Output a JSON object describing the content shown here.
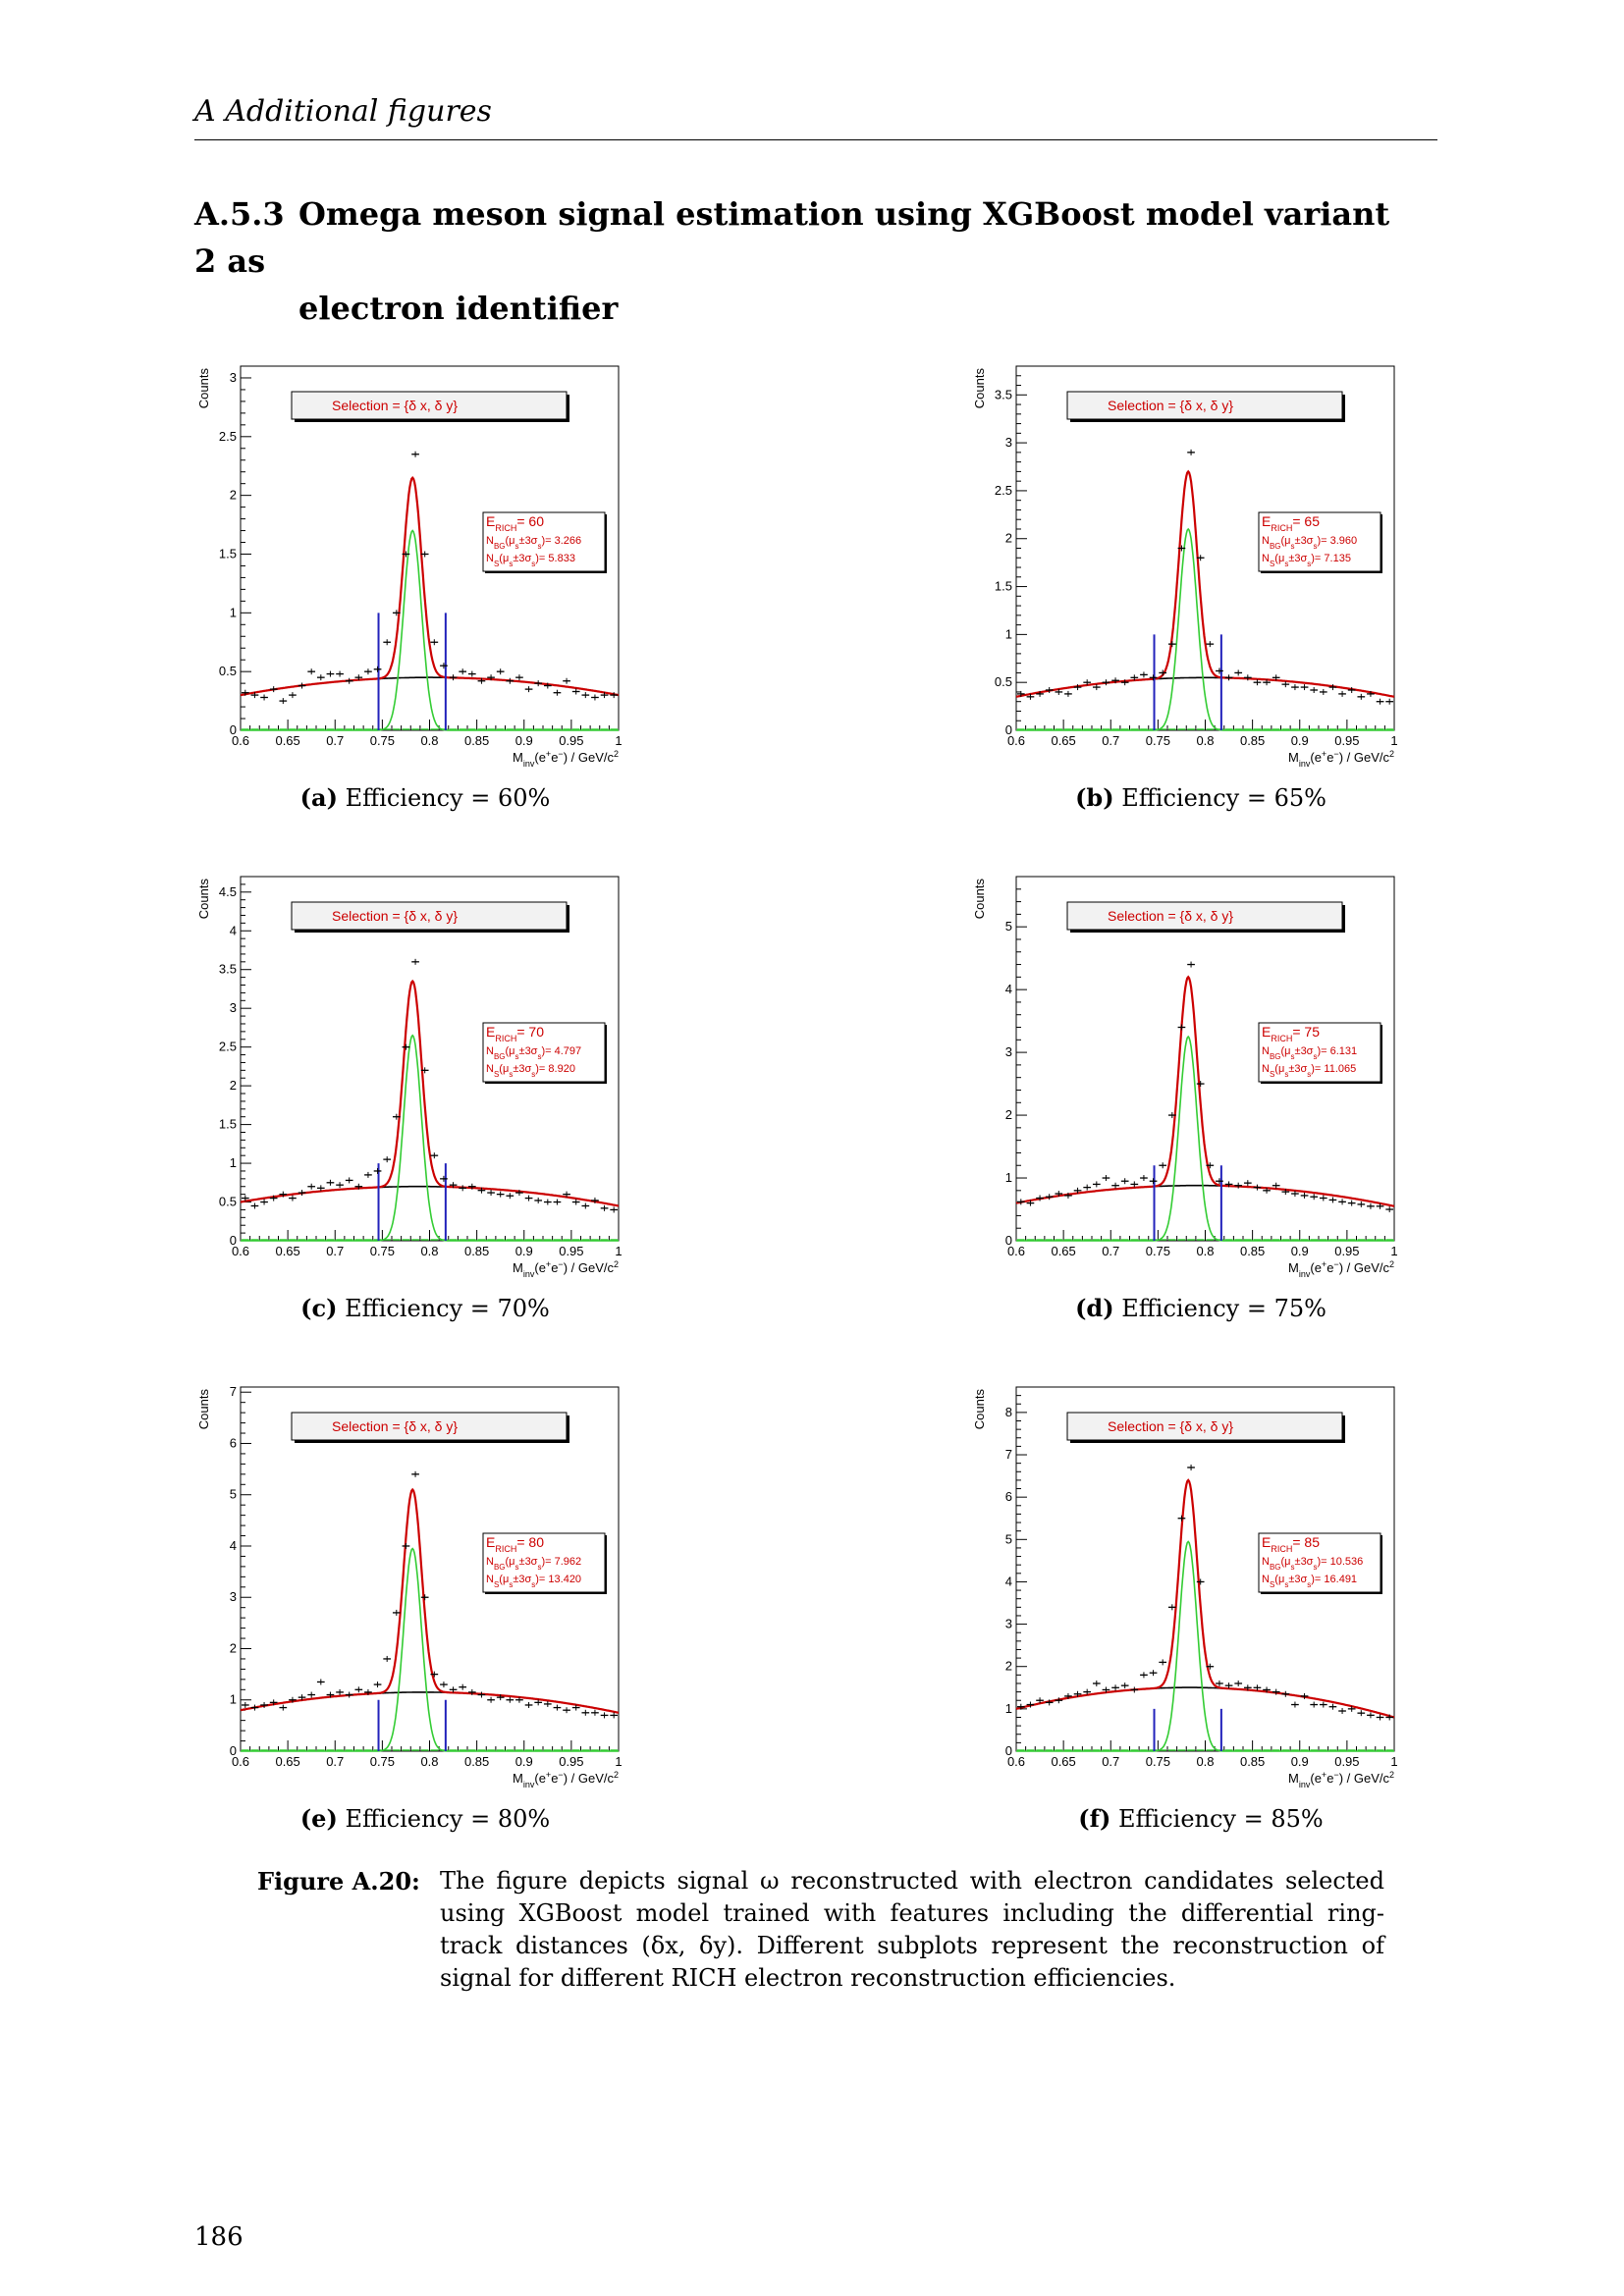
{
  "header": {
    "running_title": "A  Additional figures"
  },
  "section": {
    "number": "A.5.3",
    "title_line1": "Omega meson signal estimation using XGBoost model variant 2 as",
    "title_line2": "electron identifier"
  },
  "colors": {
    "signal_fit": "#cc0000",
    "gauss": "#33cc33",
    "background": "#000000",
    "window": "#2222bb",
    "legend_text": "#cc0000"
  },
  "chart_data": [
    {
      "type": "scatter",
      "panel": "a",
      "title": "",
      "xlabel": "M_inv(e+e-) / GeV/c^2",
      "ylabel": "Counts",
      "xlim": [
        0.6,
        1.0
      ],
      "ylim": [
        0,
        3.1
      ],
      "xticks": [
        "0.6",
        "0.65",
        "0.7",
        "0.75",
        "0.8",
        "0.85",
        "0.9",
        "0.95",
        "1"
      ],
      "yticks": [
        0,
        0.5,
        1,
        1.5,
        2,
        2.5,
        3
      ],
      "selection": "Selection = {δ x, δ y}",
      "efficiency_label": "E",
      "efficiency_sub": "RICH",
      "efficiency_value": "= 60",
      "stat_lines": [
        "N_BG(μ_s±3σ_s)= 3.266",
        "N_S(μ_s±3σ_s)= 5.833"
      ],
      "caption_label": "(a)",
      "caption_text": "Efficiency = 60%",
      "peak": 2.15,
      "gauss_amp": 1.7,
      "bkg": [
        0.3,
        0.45,
        0.3
      ],
      "window": [
        0.746,
        0.817
      ],
      "window_height": 1.0,
      "points": [
        [
          0.605,
          0.32
        ],
        [
          0.615,
          0.3
        ],
        [
          0.625,
          0.28
        ],
        [
          0.635,
          0.35
        ],
        [
          0.645,
          0.25
        ],
        [
          0.655,
          0.3
        ],
        [
          0.665,
          0.38
        ],
        [
          0.675,
          0.5
        ],
        [
          0.685,
          0.45
        ],
        [
          0.695,
          0.48
        ],
        [
          0.705,
          0.48
        ],
        [
          0.715,
          0.42
        ],
        [
          0.725,
          0.45
        ],
        [
          0.735,
          0.5
        ],
        [
          0.745,
          0.52
        ],
        [
          0.755,
          0.75
        ],
        [
          0.765,
          1.0
        ],
        [
          0.775,
          1.5
        ],
        [
          0.785,
          2.35
        ],
        [
          0.795,
          1.5
        ],
        [
          0.805,
          0.75
        ],
        [
          0.815,
          0.55
        ],
        [
          0.825,
          0.45
        ],
        [
          0.835,
          0.5
        ],
        [
          0.845,
          0.48
        ],
        [
          0.855,
          0.42
        ],
        [
          0.865,
          0.45
        ],
        [
          0.875,
          0.5
        ],
        [
          0.885,
          0.42
        ],
        [
          0.895,
          0.45
        ],
        [
          0.905,
          0.35
        ],
        [
          0.915,
          0.4
        ],
        [
          0.925,
          0.38
        ],
        [
          0.935,
          0.32
        ],
        [
          0.945,
          0.42
        ],
        [
          0.955,
          0.33
        ],
        [
          0.965,
          0.3
        ],
        [
          0.975,
          0.28
        ],
        [
          0.985,
          0.3
        ],
        [
          0.995,
          0.3
        ]
      ]
    },
    {
      "type": "scatter",
      "panel": "b",
      "title": "",
      "xlabel": "M_inv(e+e-) / GeV/c^2",
      "ylabel": "Counts",
      "xlim": [
        0.6,
        1.0
      ],
      "ylim": [
        0,
        3.8
      ],
      "xticks": [
        "0.6",
        "0.65",
        "0.7",
        "0.75",
        "0.8",
        "0.85",
        "0.9",
        "0.95",
        "1"
      ],
      "yticks": [
        0,
        0.5,
        1,
        1.5,
        2,
        2.5,
        3,
        3.5
      ],
      "selection": "Selection = {δ x, δ y}",
      "efficiency_label": "E",
      "efficiency_sub": "RICH",
      "efficiency_value": "= 65",
      "stat_lines": [
        "N_BG(μ_s±3σ_s)= 3.960",
        "N_S(μ_s±3σ_s)= 7.135"
      ],
      "caption_label": "(b)",
      "caption_text": "Efficiency = 65%",
      "peak": 2.7,
      "gauss_amp": 2.1,
      "bkg": [
        0.35,
        0.55,
        0.35
      ],
      "window": [
        0.746,
        0.817
      ],
      "window_height": 1.0,
      "points": [
        [
          0.605,
          0.38
        ],
        [
          0.615,
          0.35
        ],
        [
          0.625,
          0.38
        ],
        [
          0.635,
          0.42
        ],
        [
          0.645,
          0.4
        ],
        [
          0.655,
          0.38
        ],
        [
          0.665,
          0.45
        ],
        [
          0.675,
          0.5
        ],
        [
          0.685,
          0.45
        ],
        [
          0.695,
          0.5
        ],
        [
          0.705,
          0.52
        ],
        [
          0.715,
          0.5
        ],
        [
          0.725,
          0.55
        ],
        [
          0.735,
          0.58
        ],
        [
          0.745,
          0.55
        ],
        [
          0.755,
          0.6
        ],
        [
          0.765,
          0.9
        ],
        [
          0.775,
          1.9
        ],
        [
          0.785,
          2.9
        ],
        [
          0.795,
          1.8
        ],
        [
          0.805,
          0.9
        ],
        [
          0.815,
          0.62
        ],
        [
          0.825,
          0.55
        ],
        [
          0.835,
          0.6
        ],
        [
          0.845,
          0.55
        ],
        [
          0.855,
          0.5
        ],
        [
          0.865,
          0.5
        ],
        [
          0.875,
          0.55
        ],
        [
          0.885,
          0.48
        ],
        [
          0.895,
          0.45
        ],
        [
          0.905,
          0.45
        ],
        [
          0.915,
          0.42
        ],
        [
          0.925,
          0.4
        ],
        [
          0.935,
          0.45
        ],
        [
          0.945,
          0.38
        ],
        [
          0.955,
          0.42
        ],
        [
          0.965,
          0.35
        ],
        [
          0.975,
          0.38
        ],
        [
          0.985,
          0.3
        ],
        [
          0.995,
          0.3
        ]
      ]
    },
    {
      "type": "scatter",
      "panel": "c",
      "title": "",
      "xlabel": "M_inv(e+e-) / GeV/c^2",
      "ylabel": "Counts",
      "xlim": [
        0.6,
        1.0
      ],
      "ylim": [
        0,
        4.7
      ],
      "xticks": [
        "0.6",
        "0.65",
        "0.7",
        "0.75",
        "0.8",
        "0.85",
        "0.9",
        "0.95",
        "1"
      ],
      "yticks": [
        0,
        0.5,
        1,
        1.5,
        2,
        2.5,
        3,
        3.5,
        4,
        4.5
      ],
      "selection": "Selection = {δ x, δ y}",
      "efficiency_label": "E",
      "efficiency_sub": "RICH",
      "efficiency_value": "= 70",
      "stat_lines": [
        "N_BG(μ_s±3σ_s)= 4.797",
        "N_S(μ_s±3σ_s)= 8.920"
      ],
      "caption_label": "(c)",
      "caption_text": "Efficiency = 70%",
      "peak": 3.35,
      "gauss_amp": 2.65,
      "bkg": [
        0.5,
        0.7,
        0.45
      ],
      "window": [
        0.746,
        0.817
      ],
      "window_height": 1.0,
      "points": [
        [
          0.605,
          0.55
        ],
        [
          0.615,
          0.45
        ],
        [
          0.625,
          0.5
        ],
        [
          0.635,
          0.55
        ],
        [
          0.645,
          0.6
        ],
        [
          0.655,
          0.55
        ],
        [
          0.665,
          0.62
        ],
        [
          0.675,
          0.7
        ],
        [
          0.685,
          0.68
        ],
        [
          0.695,
          0.75
        ],
        [
          0.705,
          0.72
        ],
        [
          0.715,
          0.78
        ],
        [
          0.725,
          0.7
        ],
        [
          0.735,
          0.85
        ],
        [
          0.745,
          0.9
        ],
        [
          0.755,
          1.05
        ],
        [
          0.765,
          1.6
        ],
        [
          0.775,
          2.5
        ],
        [
          0.785,
          3.6
        ],
        [
          0.795,
          2.2
        ],
        [
          0.805,
          1.1
        ],
        [
          0.815,
          0.8
        ],
        [
          0.825,
          0.72
        ],
        [
          0.835,
          0.68
        ],
        [
          0.845,
          0.7
        ],
        [
          0.855,
          0.65
        ],
        [
          0.865,
          0.62
        ],
        [
          0.875,
          0.6
        ],
        [
          0.885,
          0.58
        ],
        [
          0.895,
          0.62
        ],
        [
          0.905,
          0.55
        ],
        [
          0.915,
          0.52
        ],
        [
          0.925,
          0.5
        ],
        [
          0.935,
          0.5
        ],
        [
          0.945,
          0.6
        ],
        [
          0.955,
          0.5
        ],
        [
          0.965,
          0.45
        ],
        [
          0.975,
          0.52
        ],
        [
          0.985,
          0.42
        ],
        [
          0.995,
          0.4
        ]
      ]
    },
    {
      "type": "scatter",
      "panel": "d",
      "title": "",
      "xlabel": "M_inv(e+e-) / GeV/c^2",
      "ylabel": "Counts",
      "xlim": [
        0.6,
        1.0
      ],
      "ylim": [
        0,
        5.8
      ],
      "xticks": [
        "0.6",
        "0.65",
        "0.7",
        "0.75",
        "0.8",
        "0.85",
        "0.9",
        "0.95",
        "1"
      ],
      "yticks": [
        0,
        1,
        2,
        3,
        4,
        5
      ],
      "selection": "Selection = {δ x, δ y}",
      "efficiency_label": "E",
      "efficiency_sub": "RICH",
      "efficiency_value": "= 75",
      "stat_lines": [
        "N_BG(μ_s±3σ_s)= 6.131",
        "N_S(μ_s±3σ_s)= 11.065"
      ],
      "caption_label": "(d)",
      "caption_text": "Efficiency = 75%",
      "peak": 4.2,
      "gauss_amp": 3.25,
      "bkg": [
        0.6,
        0.88,
        0.55
      ],
      "window": [
        0.746,
        0.817
      ],
      "window_height": 1.2,
      "points": [
        [
          0.605,
          0.62
        ],
        [
          0.615,
          0.6
        ],
        [
          0.625,
          0.68
        ],
        [
          0.635,
          0.7
        ],
        [
          0.645,
          0.75
        ],
        [
          0.655,
          0.72
        ],
        [
          0.665,
          0.8
        ],
        [
          0.675,
          0.85
        ],
        [
          0.685,
          0.9
        ],
        [
          0.695,
          1.0
        ],
        [
          0.705,
          0.88
        ],
        [
          0.715,
          0.95
        ],
        [
          0.725,
          0.9
        ],
        [
          0.735,
          1.0
        ],
        [
          0.745,
          0.95
        ],
        [
          0.755,
          1.2
        ],
        [
          0.765,
          2.0
        ],
        [
          0.775,
          3.4
        ],
        [
          0.785,
          4.4
        ],
        [
          0.795,
          2.5
        ],
        [
          0.805,
          1.2
        ],
        [
          0.815,
          0.95
        ],
        [
          0.825,
          0.9
        ],
        [
          0.835,
          0.88
        ],
        [
          0.845,
          0.92
        ],
        [
          0.855,
          0.85
        ],
        [
          0.865,
          0.8
        ],
        [
          0.875,
          0.88
        ],
        [
          0.885,
          0.78
        ],
        [
          0.895,
          0.75
        ],
        [
          0.905,
          0.72
        ],
        [
          0.915,
          0.7
        ],
        [
          0.925,
          0.68
        ],
        [
          0.935,
          0.65
        ],
        [
          0.945,
          0.62
        ],
        [
          0.955,
          0.6
        ],
        [
          0.965,
          0.58
        ],
        [
          0.975,
          0.55
        ],
        [
          0.985,
          0.55
        ],
        [
          0.995,
          0.5
        ]
      ]
    },
    {
      "type": "scatter",
      "panel": "e",
      "title": "",
      "xlabel": "M_inv(e+e-) / GeV/c^2",
      "ylabel": "Counts",
      "xlim": [
        0.6,
        1.0
      ],
      "ylim": [
        0,
        7.1
      ],
      "xticks": [
        "0.6",
        "0.65",
        "0.7",
        "0.75",
        "0.8",
        "0.85",
        "0.9",
        "0.95",
        "1"
      ],
      "yticks": [
        0,
        1,
        2,
        3,
        4,
        5,
        6,
        7
      ],
      "selection": "Selection = {δ x, δ y}",
      "efficiency_label": "E",
      "efficiency_sub": "RICH",
      "efficiency_value": "= 80",
      "stat_lines": [
        "N_BG(μ_s±3σ_s)= 7.962",
        "N_S(μ_s±3σ_s)= 13.420"
      ],
      "caption_label": "(e)",
      "caption_text": "Efficiency = 80%",
      "peak": 5.1,
      "gauss_amp": 3.95,
      "bkg": [
        0.8,
        1.15,
        0.75
      ],
      "window": [
        0.746,
        0.817
      ],
      "window_height": 1.0,
      "points": [
        [
          0.605,
          0.9
        ],
        [
          0.615,
          0.85
        ],
        [
          0.625,
          0.9
        ],
        [
          0.635,
          0.95
        ],
        [
          0.645,
          0.85
        ],
        [
          0.655,
          1.0
        ],
        [
          0.665,
          1.05
        ],
        [
          0.675,
          1.1
        ],
        [
          0.685,
          1.35
        ],
        [
          0.695,
          1.1
        ],
        [
          0.705,
          1.15
        ],
        [
          0.715,
          1.1
        ],
        [
          0.725,
          1.2
        ],
        [
          0.735,
          1.15
        ],
        [
          0.745,
          1.3
        ],
        [
          0.755,
          1.8
        ],
        [
          0.765,
          2.7
        ],
        [
          0.775,
          4.0
        ],
        [
          0.785,
          5.4
        ],
        [
          0.795,
          3.0
        ],
        [
          0.805,
          1.5
        ],
        [
          0.815,
          1.3
        ],
        [
          0.825,
          1.2
        ],
        [
          0.835,
          1.25
        ],
        [
          0.845,
          1.15
        ],
        [
          0.855,
          1.1
        ],
        [
          0.865,
          1.0
        ],
        [
          0.875,
          1.05
        ],
        [
          0.885,
          1.0
        ],
        [
          0.895,
          1.0
        ],
        [
          0.905,
          0.9
        ],
        [
          0.915,
          0.95
        ],
        [
          0.925,
          0.92
        ],
        [
          0.935,
          0.85
        ],
        [
          0.945,
          0.8
        ],
        [
          0.955,
          0.85
        ],
        [
          0.965,
          0.75
        ],
        [
          0.975,
          0.75
        ],
        [
          0.985,
          0.7
        ],
        [
          0.995,
          0.7
        ]
      ]
    },
    {
      "type": "scatter",
      "panel": "f",
      "title": "",
      "xlabel": "M_inv(e+e-) / GeV/c^2",
      "ylabel": "Counts",
      "xlim": [
        0.6,
        1.0
      ],
      "ylim": [
        0,
        8.6
      ],
      "xticks": [
        "0.6",
        "0.65",
        "0.7",
        "0.75",
        "0.8",
        "0.85",
        "0.9",
        "0.95",
        "1"
      ],
      "yticks": [
        0,
        1,
        2,
        3,
        4,
        5,
        6,
        7,
        8
      ],
      "selection": "Selection = {δ x, δ y}",
      "efficiency_label": "E",
      "efficiency_sub": "RICH",
      "efficiency_value": "= 85",
      "stat_lines": [
        "N_BG(μ_s±3σ_s)= 10.536",
        "N_S(μ_s±3σ_s)= 16.491"
      ],
      "caption_label": "(f)",
      "caption_text": "Efficiency = 85%",
      "peak": 6.4,
      "gauss_amp": 4.95,
      "bkg": [
        1.0,
        1.5,
        0.8
      ],
      "window": [
        0.746,
        0.817
      ],
      "window_height": 1.0,
      "points": [
        [
          0.605,
          1.05
        ],
        [
          0.615,
          1.1
        ],
        [
          0.625,
          1.2
        ],
        [
          0.635,
          1.15
        ],
        [
          0.645,
          1.2
        ],
        [
          0.655,
          1.3
        ],
        [
          0.665,
          1.35
        ],
        [
          0.675,
          1.4
        ],
        [
          0.685,
          1.6
        ],
        [
          0.695,
          1.45
        ],
        [
          0.705,
          1.5
        ],
        [
          0.715,
          1.55
        ],
        [
          0.725,
          1.45
        ],
        [
          0.735,
          1.8
        ],
        [
          0.745,
          1.85
        ],
        [
          0.755,
          2.1
        ],
        [
          0.765,
          3.4
        ],
        [
          0.775,
          5.5
        ],
        [
          0.785,
          6.7
        ],
        [
          0.795,
          4.0
        ],
        [
          0.805,
          2.0
        ],
        [
          0.815,
          1.6
        ],
        [
          0.825,
          1.55
        ],
        [
          0.835,
          1.6
        ],
        [
          0.845,
          1.5
        ],
        [
          0.855,
          1.5
        ],
        [
          0.865,
          1.45
        ],
        [
          0.875,
          1.4
        ],
        [
          0.885,
          1.35
        ],
        [
          0.895,
          1.1
        ],
        [
          0.905,
          1.3
        ],
        [
          0.915,
          1.1
        ],
        [
          0.925,
          1.1
        ],
        [
          0.935,
          1.05
        ],
        [
          0.945,
          0.95
        ],
        [
          0.955,
          1.0
        ],
        [
          0.965,
          0.9
        ],
        [
          0.975,
          0.85
        ],
        [
          0.985,
          0.8
        ],
        [
          0.995,
          0.8
        ]
      ]
    }
  ],
  "figure_caption": {
    "label": "Figure A.20:",
    "text": "The figure depicts signal ω reconstructed with electron candidates selected using XGBoost model trained with features including the differential ring-track distances (δx, δy). Different subplots represent the reconstruction of signal for different RICH electron reconstruction efficiencies."
  },
  "page_number": "186"
}
